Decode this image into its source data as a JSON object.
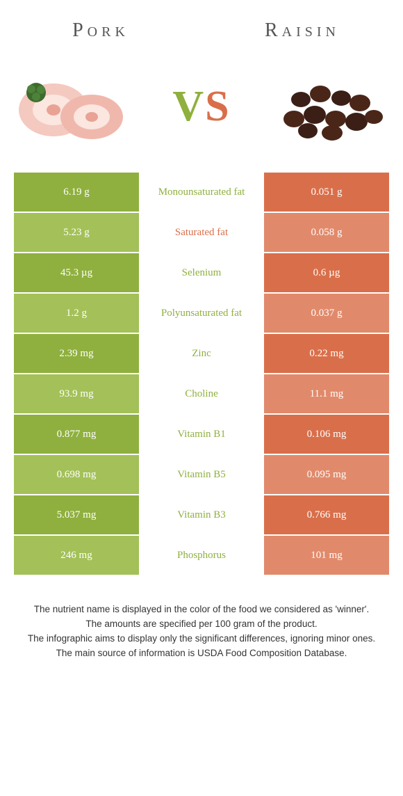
{
  "header": {
    "left_title": "Pork",
    "right_title": "Raisin",
    "vs_v": "V",
    "vs_s": "S"
  },
  "colors": {
    "green_dark": "#8fb03e",
    "green_light": "#a3c158",
    "orange_dark": "#d96f4a",
    "orange_light": "#e18a6b",
    "mid_green": "#8fb03e",
    "mid_orange": "#d96f4a"
  },
  "rows": [
    {
      "left": "6.19 g",
      "label": "Monounsaturated fat",
      "right": "0.051 g",
      "winner": "left"
    },
    {
      "left": "5.23 g",
      "label": "Saturated fat",
      "right": "0.058 g",
      "winner": "right"
    },
    {
      "left": "45.3 µg",
      "label": "Selenium",
      "right": "0.6 µg",
      "winner": "left"
    },
    {
      "left": "1.2 g",
      "label": "Polyunsaturated fat",
      "right": "0.037 g",
      "winner": "left"
    },
    {
      "left": "2.39 mg",
      "label": "Zinc",
      "right": "0.22 mg",
      "winner": "left"
    },
    {
      "left": "93.9 mg",
      "label": "Choline",
      "right": "11.1 mg",
      "winner": "left"
    },
    {
      "left": "0.877 mg",
      "label": "Vitamin B1",
      "right": "0.106 mg",
      "winner": "left"
    },
    {
      "left": "0.698 mg",
      "label": "Vitamin B5",
      "right": "0.095 mg",
      "winner": "left"
    },
    {
      "left": "5.037 mg",
      "label": "Vitamin B3",
      "right": "0.766 mg",
      "winner": "left"
    },
    {
      "left": "246 mg",
      "label": "Phosphorus",
      "right": "101 mg",
      "winner": "left"
    }
  ],
  "footer": {
    "line1": "The nutrient name is displayed in the color of the food we considered as 'winner'.",
    "line2": "The amounts are specified per 100 gram of the product.",
    "line3": "The infographic aims to display only the significant differences, ignoring minor ones.",
    "line4": "The main source of information is USDA Food Composition Database."
  }
}
